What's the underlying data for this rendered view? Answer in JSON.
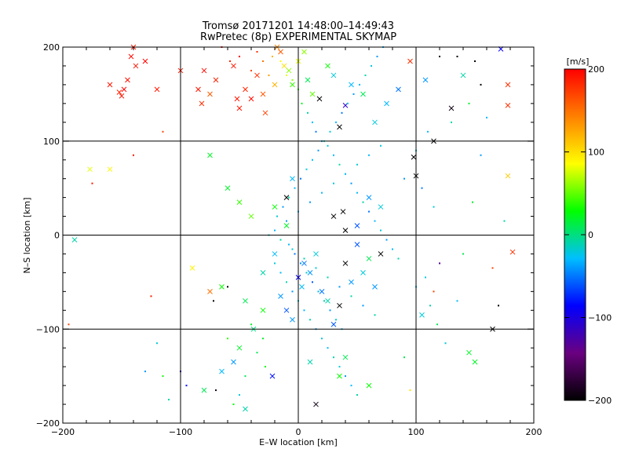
{
  "chart_data": {
    "type": "scatter",
    "title": "Tromsø 20171201 14:48:00–14:49:43",
    "subtitle": "RwPretec (8p) EXPERIMENTAL SKYMAP",
    "xlabel": "E–W location [km]",
    "ylabel": "N–S location [km]",
    "xlim": [
      -200,
      200
    ],
    "ylim": [
      -200,
      200
    ],
    "xticks": [
      "−200",
      "−100",
      "0",
      "100",
      "200"
    ],
    "yticks": [
      "−200",
      "−100",
      "0",
      "100",
      "200"
    ],
    "grid": true,
    "colorbar": {
      "label": "[m/s]",
      "range": [
        -200,
        200
      ],
      "ticks": [
        "200",
        "100",
        "0",
        "−100",
        "−200"
      ],
      "palette": [
        "#000000",
        "#6a0080",
        "#0000ff",
        "#00bfff",
        "#00ff00",
        "#ffff00",
        "#ff8000",
        "#ff0000"
      ]
    },
    "markers": {
      "small": "dot",
      "large": "x"
    },
    "points": [
      [
        -190,
        -5,
        -10,
        1
      ],
      [
        -177,
        70,
        80,
        1
      ],
      [
        -160,
        70,
        90,
        1
      ],
      [
        -160,
        160,
        190,
        1
      ],
      [
        -150,
        148,
        190,
        1
      ],
      [
        -152,
        152,
        185,
        1
      ],
      [
        -148,
        155,
        200,
        1
      ],
      [
        -145,
        165,
        195,
        1
      ],
      [
        -142,
        190,
        195,
        1
      ],
      [
        -140,
        200,
        190,
        1
      ],
      [
        -138,
        180,
        190,
        1
      ],
      [
        -130,
        185,
        200,
        1
      ],
      [
        -120,
        155,
        190,
        1
      ],
      [
        -100,
        175,
        190,
        1
      ],
      [
        -80,
        175,
        195,
        1
      ],
      [
        -85,
        155,
        190,
        1
      ],
      [
        -82,
        140,
        180,
        1
      ],
      [
        -75,
        150,
        160,
        1
      ],
      [
        -70,
        165,
        185,
        1
      ],
      [
        -75,
        85,
        20,
        1
      ],
      [
        -60,
        50,
        20,
        1
      ],
      [
        -55,
        180,
        190,
        1
      ],
      [
        -52,
        145,
        190,
        1
      ],
      [
        -50,
        135,
        190,
        1
      ],
      [
        -45,
        155,
        185,
        1
      ],
      [
        -40,
        145,
        195,
        1
      ],
      [
        -35,
        170,
        180,
        1
      ],
      [
        -30,
        150,
        160,
        1
      ],
      [
        -28,
        130,
        170,
        1
      ],
      [
        -20,
        160,
        120,
        1
      ],
      [
        -18,
        200,
        140,
        1
      ],
      [
        -15,
        195,
        160,
        1
      ],
      [
        -12,
        180,
        100,
        1
      ],
      [
        -8,
        175,
        60,
        1
      ],
      [
        -5,
        160,
        40,
        1
      ],
      [
        0,
        185,
        80,
        1
      ],
      [
        5,
        195,
        60,
        1
      ],
      [
        8,
        165,
        10,
        1
      ],
      [
        12,
        150,
        50,
        1
      ],
      [
        18,
        145,
        -200,
        1
      ],
      [
        25,
        180,
        30,
        1
      ],
      [
        30,
        170,
        -20,
        1
      ],
      [
        35,
        115,
        -200,
        1
      ],
      [
        40,
        138,
        -110,
        1
      ],
      [
        45,
        160,
        -30,
        1
      ],
      [
        55,
        150,
        10,
        1
      ],
      [
        65,
        120,
        -20,
        1
      ],
      [
        75,
        140,
        -30,
        1
      ],
      [
        85,
        155,
        -50,
        1
      ],
      [
        95,
        185,
        180,
        1
      ],
      [
        108,
        165,
        -40,
        1
      ],
      [
        115,
        100,
        -200,
        1
      ],
      [
        98,
        83,
        -200,
        1
      ],
      [
        100,
        63,
        -200,
        1
      ],
      [
        130,
        135,
        -190,
        1
      ],
      [
        140,
        170,
        -10,
        1
      ],
      [
        172,
        198,
        -90,
        1
      ],
      [
        178,
        160,
        180,
        1
      ],
      [
        178,
        138,
        180,
        1
      ],
      [
        178,
        63,
        110,
        1
      ],
      [
        182,
        -18,
        180,
        1
      ],
      [
        -90,
        -35,
        90,
        1
      ],
      [
        -75,
        -60,
        150,
        1
      ],
      [
        -65,
        -55,
        30,
        1
      ],
      [
        -45,
        -70,
        10,
        1
      ],
      [
        -30,
        -40,
        -10,
        1
      ],
      [
        -20,
        -20,
        -30,
        1
      ],
      [
        -15,
        -65,
        -40,
        1
      ],
      [
        -10,
        -80,
        -60,
        1
      ],
      [
        -5,
        -90,
        -40,
        1
      ],
      [
        0,
        -45,
        -90,
        1
      ],
      [
        3,
        -55,
        -30,
        1
      ],
      [
        5,
        -30,
        -50,
        1
      ],
      [
        10,
        -40,
        -40,
        1
      ],
      [
        15,
        -20,
        -20,
        1
      ],
      [
        20,
        -60,
        -50,
        1
      ],
      [
        25,
        -70,
        -10,
        1
      ],
      [
        30,
        -95,
        -60,
        1
      ],
      [
        35,
        -75,
        -200,
        1
      ],
      [
        40,
        -30,
        -200,
        1
      ],
      [
        45,
        -50,
        -40,
        1
      ],
      [
        50,
        -10,
        -60,
        1
      ],
      [
        55,
        -40,
        -20,
        1
      ],
      [
        60,
        -25,
        10,
        1
      ],
      [
        65,
        -55,
        -40,
        1
      ],
      [
        70,
        -20,
        -200,
        1
      ],
      [
        -55,
        -135,
        -40,
        1
      ],
      [
        -65,
        -145,
        -30,
        1
      ],
      [
        -80,
        -165,
        10,
        1
      ],
      [
        -50,
        -120,
        20,
        1
      ],
      [
        -45,
        -185,
        -10,
        1
      ],
      [
        -38,
        -100,
        0,
        1
      ],
      [
        -30,
        -80,
        30,
        1
      ],
      [
        -22,
        -150,
        -80,
        1
      ],
      [
        10,
        -135,
        -10,
        1
      ],
      [
        15,
        -180,
        -190,
        1
      ],
      [
        35,
        -150,
        30,
        1
      ],
      [
        40,
        -130,
        10,
        1
      ],
      [
        60,
        -160,
        30,
        1
      ],
      [
        -10,
        40,
        -200,
        1
      ],
      [
        -5,
        60,
        -30,
        1
      ],
      [
        30,
        20,
        -200,
        1
      ],
      [
        38,
        25,
        -200,
        1
      ],
      [
        40,
        5,
        -200,
        1
      ],
      [
        50,
        10,
        -60,
        1
      ],
      [
        60,
        40,
        -40,
        1
      ],
      [
        70,
        30,
        -20,
        1
      ],
      [
        -50,
        35,
        40,
        1
      ],
      [
        -40,
        20,
        50,
        1
      ],
      [
        -20,
        30,
        30,
        1
      ],
      [
        -10,
        10,
        20,
        1
      ],
      [
        150,
        -135,
        20,
        1
      ],
      [
        145,
        -125,
        20,
        1
      ],
      [
        165,
        -100,
        -200,
        1
      ],
      [
        105,
        -85,
        -20,
        1
      ],
      [
        -195,
        -95,
        170,
        0
      ],
      [
        -175,
        55,
        190,
        0
      ],
      [
        -140,
        85,
        190,
        0
      ],
      [
        -125,
        -65,
        190,
        0
      ],
      [
        -115,
        110,
        170,
        0
      ],
      [
        -100,
        -145,
        -120,
        0
      ],
      [
        -95,
        -160,
        -80,
        0
      ],
      [
        -70,
        -165,
        -190,
        0
      ],
      [
        -60,
        -55,
        -200,
        0
      ],
      [
        -72,
        -70,
        -200,
        0
      ],
      [
        -65,
        200,
        190,
        0
      ],
      [
        -58,
        185,
        185,
        0
      ],
      [
        -50,
        190,
        200,
        0
      ],
      [
        -40,
        175,
        170,
        0
      ],
      [
        -35,
        195,
        180,
        0
      ],
      [
        -30,
        185,
        150,
        0
      ],
      [
        -25,
        170,
        130,
        0
      ],
      [
        -22,
        190,
        120,
        0
      ],
      [
        -15,
        185,
        90,
        0
      ],
      [
        -10,
        170,
        80,
        0
      ],
      [
        -5,
        165,
        60,
        0
      ],
      [
        0,
        155,
        40,
        0
      ],
      [
        3,
        140,
        20,
        0
      ],
      [
        8,
        130,
        -10,
        0
      ],
      [
        12,
        120,
        -30,
        0
      ],
      [
        15,
        110,
        -50,
        0
      ],
      [
        20,
        100,
        -40,
        0
      ],
      [
        25,
        95,
        -20,
        0
      ],
      [
        30,
        85,
        -30,
        0
      ],
      [
        35,
        75,
        -10,
        0
      ],
      [
        40,
        65,
        -20,
        0
      ],
      [
        45,
        55,
        -40,
        0
      ],
      [
        50,
        45,
        -30,
        0
      ],
      [
        55,
        35,
        -10,
        0
      ],
      [
        60,
        25,
        -50,
        0
      ],
      [
        65,
        15,
        -30,
        0
      ],
      [
        70,
        5,
        -20,
        0
      ],
      [
        75,
        -5,
        -40,
        0
      ],
      [
        80,
        -15,
        -30,
        0
      ],
      [
        85,
        -25,
        -10,
        0
      ],
      [
        -8,
        -10,
        -30,
        0
      ],
      [
        -3,
        -20,
        -50,
        0
      ],
      [
        2,
        -30,
        -40,
        0
      ],
      [
        7,
        -40,
        -20,
        0
      ],
      [
        12,
        -50,
        -60,
        0
      ],
      [
        17,
        -60,
        -30,
        0
      ],
      [
        22,
        -70,
        -10,
        0
      ],
      [
        27,
        -80,
        -40,
        0
      ],
      [
        32,
        -90,
        -20,
        0
      ],
      [
        37,
        -100,
        -30,
        0
      ],
      [
        -18,
        20,
        -20,
        0
      ],
      [
        -13,
        30,
        -40,
        0
      ],
      [
        -8,
        40,
        -10,
        0
      ],
      [
        -3,
        50,
        -30,
        0
      ],
      [
        2,
        60,
        -50,
        0
      ],
      [
        7,
        70,
        -20,
        0
      ],
      [
        12,
        80,
        -30,
        0
      ],
      [
        17,
        90,
        -40,
        0
      ],
      [
        22,
        100,
        -10,
        0
      ],
      [
        27,
        110,
        -20,
        0
      ],
      [
        32,
        120,
        -30,
        0
      ],
      [
        37,
        130,
        -50,
        0
      ],
      [
        42,
        140,
        -20,
        0
      ],
      [
        47,
        150,
        -40,
        0
      ],
      [
        52,
        160,
        -30,
        0
      ],
      [
        57,
        170,
        -10,
        0
      ],
      [
        62,
        180,
        -20,
        0
      ],
      [
        67,
        190,
        -40,
        0
      ],
      [
        72,
        200,
        -30,
        0
      ],
      [
        -20,
        -30,
        -20,
        0
      ],
      [
        -15,
        -40,
        -30,
        0
      ],
      [
        -10,
        -50,
        -10,
        0
      ],
      [
        -5,
        -60,
        -40,
        0
      ],
      [
        0,
        -70,
        -20,
        0
      ],
      [
        5,
        -80,
        -30,
        0
      ],
      [
        10,
        -90,
        -10,
        0
      ],
      [
        15,
        -100,
        -40,
        0
      ],
      [
        20,
        -110,
        -20,
        0
      ],
      [
        25,
        -120,
        -30,
        0
      ],
      [
        30,
        -130,
        -10,
        0
      ],
      [
        35,
        -140,
        -20,
        0
      ],
      [
        40,
        -150,
        -40,
        0
      ],
      [
        45,
        -160,
        -30,
        0
      ],
      [
        50,
        -170,
        -10,
        0
      ],
      [
        -25,
        0,
        -20,
        0
      ],
      [
        -20,
        5,
        -30,
        0
      ],
      [
        -15,
        -5,
        -10,
        0
      ],
      [
        -10,
        15,
        -40,
        0
      ],
      [
        -5,
        -15,
        -20,
        0
      ],
      [
        0,
        25,
        -30,
        0
      ],
      [
        5,
        -25,
        -10,
        0
      ],
      [
        10,
        35,
        -40,
        0
      ],
      [
        15,
        -35,
        -20,
        0
      ],
      [
        20,
        45,
        -30,
        0
      ],
      [
        25,
        -45,
        -10,
        0
      ],
      [
        30,
        55,
        -20,
        0
      ],
      [
        35,
        -55,
        -40,
        0
      ],
      [
        40,
        65,
        -30,
        0
      ],
      [
        45,
        -65,
        -10,
        0
      ],
      [
        50,
        75,
        -20,
        0
      ],
      [
        55,
        -75,
        -40,
        0
      ],
      [
        60,
        85,
        -30,
        0
      ],
      [
        65,
        -85,
        -10,
        0
      ],
      [
        70,
        95,
        -20,
        0
      ],
      [
        -30,
        -110,
        20,
        0
      ],
      [
        -35,
        -125,
        10,
        0
      ],
      [
        -28,
        -140,
        30,
        0
      ],
      [
        -40,
        -95,
        20,
        0
      ],
      [
        -45,
        -150,
        10,
        0
      ],
      [
        -50,
        -170,
        -20,
        0
      ],
      [
        -55,
        -180,
        30,
        0
      ],
      [
        -60,
        -110,
        40,
        0
      ],
      [
        90,
        -130,
        10,
        0
      ],
      [
        95,
        -165,
        100,
        0
      ],
      [
        100,
        -55,
        -30,
        0
      ],
      [
        108,
        -45,
        -20,
        0
      ],
      [
        112,
        -75,
        -10,
        0
      ],
      [
        118,
        -95,
        10,
        0
      ],
      [
        125,
        -115,
        -20,
        0
      ],
      [
        135,
        -70,
        -30,
        0
      ],
      [
        140,
        -20,
        10,
        0
      ],
      [
        148,
        35,
        20,
        0
      ],
      [
        155,
        85,
        -40,
        0
      ],
      [
        160,
        125,
        -30,
        0
      ],
      [
        165,
        -35,
        170,
        0
      ],
      [
        170,
        -75,
        -200,
        0
      ],
      [
        175,
        15,
        -10,
        0
      ],
      [
        120,
        190,
        -200,
        0
      ],
      [
        135,
        190,
        -200,
        0
      ],
      [
        150,
        185,
        -200,
        0
      ],
      [
        155,
        160,
        -200,
        0
      ],
      [
        145,
        140,
        20,
        0
      ],
      [
        130,
        120,
        -10,
        0
      ],
      [
        110,
        110,
        -30,
        0
      ],
      [
        100,
        90,
        -20,
        0
      ],
      [
        90,
        60,
        -40,
        0
      ],
      [
        105,
        50,
        -50,
        0
      ],
      [
        115,
        30,
        -20,
        0
      ],
      [
        120,
        -30,
        -130,
        0
      ],
      [
        115,
        -60,
        170,
        0
      ],
      [
        -110,
        -175,
        -10,
        0
      ],
      [
        -120,
        -115,
        -20,
        0
      ],
      [
        -130,
        -145,
        -40,
        0
      ],
      [
        -115,
        -150,
        30,
        0
      ]
    ]
  }
}
